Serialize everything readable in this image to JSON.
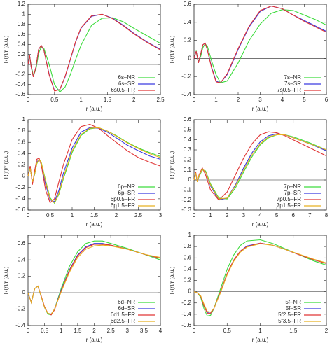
{
  "chart_data": [
    {
      "type": "line",
      "x_label": "r (a.u.)",
      "y_label": "R(r)/r (a.u.)",
      "legend": "lower right",
      "xlim": [
        0,
        2.5
      ],
      "xticks": [
        0,
        0.5,
        1,
        1.5,
        2,
        2.5
      ],
      "ylim": [
        -0.6,
        1.2
      ],
      "yticks": [
        -0.6,
        -0.4,
        -0.2,
        0,
        0.2,
        0.4,
        0.6,
        0.8,
        1,
        1.2
      ],
      "x": [
        0,
        0.03,
        0.06,
        0.1,
        0.15,
        0.2,
        0.25,
        0.3,
        0.4,
        0.5,
        0.6,
        0.7,
        0.8,
        0.9,
        1.0,
        1.2,
        1.4,
        1.6,
        1.8,
        2.0,
        2.25,
        2.5
      ],
      "series": [
        {
          "name": "6s–NR",
          "color": "#3ddc3d",
          "values": [
            0,
            0.17,
            -0.02,
            -0.22,
            -0.1,
            0.22,
            0.35,
            0.32,
            0.0,
            -0.4,
            -0.55,
            -0.45,
            -0.2,
            0.1,
            0.38,
            0.78,
            0.92,
            0.93,
            0.85,
            0.72,
            0.57,
            0.42
          ]
        },
        {
          "name": "6s–SR",
          "color": "#3a3ae0",
          "values": [
            0,
            0.18,
            -0.05,
            -0.25,
            -0.05,
            0.3,
            0.38,
            0.28,
            -0.2,
            -0.52,
            -0.5,
            -0.25,
            0.1,
            0.45,
            0.72,
            0.96,
            1.0,
            0.92,
            0.78,
            0.62,
            0.45,
            0.3
          ]
        },
        {
          "name": "6s0.5–FR",
          "color": "#e03434",
          "values": [
            0,
            0.18,
            -0.05,
            -0.25,
            -0.05,
            0.3,
            0.38,
            0.28,
            -0.21,
            -0.53,
            -0.5,
            -0.24,
            0.11,
            0.46,
            0.73,
            0.97,
            1.0,
            0.91,
            0.77,
            0.61,
            0.44,
            0.29
          ]
        }
      ]
    },
    {
      "type": "line",
      "x_label": "r (a.u.)",
      "y_label": "R(r)/r (a.u.)",
      "legend": "lower right",
      "xlim": [
        0,
        6
      ],
      "xticks": [
        0,
        1,
        2,
        3,
        4,
        5,
        6
      ],
      "ylim": [
        -0.4,
        0.6
      ],
      "yticks": [
        -0.4,
        -0.2,
        0,
        0.2,
        0.4,
        0.6
      ],
      "x": [
        0,
        0.1,
        0.2,
        0.3,
        0.4,
        0.5,
        0.6,
        0.8,
        1.0,
        1.2,
        1.5,
        2,
        2.5,
        3,
        3.5,
        4,
        4.5,
        5,
        5.5,
        6
      ],
      "series": [
        {
          "name": "7s–NR",
          "color": "#3ddc3d",
          "values": [
            0,
            0.08,
            -0.03,
            0.02,
            0.12,
            0.16,
            0.14,
            -0.03,
            -0.18,
            -0.27,
            -0.25,
            -0.05,
            0.2,
            0.38,
            0.5,
            0.54,
            0.53,
            0.48,
            0.43,
            0.37
          ]
        },
        {
          "name": "7s–SR",
          "color": "#3a3ae0",
          "values": [
            0,
            0.08,
            -0.05,
            0.05,
            0.15,
            0.17,
            0.1,
            -0.1,
            -0.25,
            -0.27,
            -0.18,
            0.1,
            0.35,
            0.52,
            0.58,
            0.55,
            0.48,
            0.42,
            0.36,
            0.3
          ]
        },
        {
          "name": "7s0.5–FR",
          "color": "#e03434",
          "values": [
            0,
            0.08,
            -0.05,
            0.05,
            0.15,
            0.17,
            0.1,
            -0.11,
            -0.26,
            -0.27,
            -0.17,
            0.11,
            0.36,
            0.53,
            0.58,
            0.55,
            0.48,
            0.41,
            0.35,
            0.29
          ]
        }
      ]
    },
    {
      "type": "line",
      "x_label": "r (a.u.)",
      "y_label": "R(r)/r (a.u.)",
      "legend": "lower right",
      "xlim": [
        0,
        3
      ],
      "xticks": [
        0,
        0.5,
        1,
        1.5,
        2,
        2.5,
        3
      ],
      "ylim": [
        -0.6,
        1
      ],
      "yticks": [
        -0.6,
        -0.4,
        -0.2,
        0,
        0.2,
        0.4,
        0.6,
        0.8,
        1
      ],
      "x": [
        0,
        0.05,
        0.1,
        0.15,
        0.2,
        0.25,
        0.3,
        0.4,
        0.5,
        0.6,
        0.7,
        0.8,
        1,
        1.2,
        1.4,
        1.6,
        1.8,
        2,
        2.25,
        2.5,
        2.75,
        3
      ],
      "series": [
        {
          "name": "6p–NR",
          "color": "#3ddc3d",
          "values": [
            0,
            0.14,
            -0.1,
            0.03,
            0.22,
            0.3,
            0.25,
            -0.08,
            -0.38,
            -0.48,
            -0.32,
            -0.05,
            0.42,
            0.72,
            0.84,
            0.86,
            0.8,
            0.72,
            0.6,
            0.5,
            0.42,
            0.35
          ]
        },
        {
          "name": "6p–SR",
          "color": "#3a3ae0",
          "values": [
            0,
            0.15,
            -0.12,
            0.05,
            0.25,
            0.3,
            0.22,
            -0.15,
            -0.42,
            -0.45,
            -0.25,
            0.05,
            0.5,
            0.78,
            0.86,
            0.85,
            0.78,
            0.68,
            0.55,
            0.45,
            0.36,
            0.3
          ]
        },
        {
          "name": "6p0.5–FR",
          "color": "#e03434",
          "values": [
            0,
            0.18,
            -0.15,
            0.1,
            0.3,
            0.32,
            0.2,
            -0.25,
            -0.47,
            -0.4,
            -0.1,
            0.2,
            0.65,
            0.88,
            0.92,
            0.85,
            0.72,
            0.6,
            0.45,
            0.33,
            0.25,
            0.18
          ]
        },
        {
          "name": "6p1.5–FR",
          "color": "#e8b020",
          "values": [
            0,
            0.14,
            -0.1,
            0.04,
            0.23,
            0.3,
            0.24,
            -0.1,
            -0.4,
            -0.47,
            -0.3,
            -0.02,
            0.45,
            0.74,
            0.85,
            0.86,
            0.8,
            0.71,
            0.59,
            0.49,
            0.4,
            0.33
          ]
        }
      ]
    },
    {
      "type": "line",
      "x_label": "r (a.u.)",
      "y_label": "R(r)/r (a.u.)",
      "legend": "lower right",
      "xlim": [
        0,
        8
      ],
      "xticks": [
        0,
        1,
        2,
        3,
        4,
        5,
        6,
        7,
        8
      ],
      "ylim": [
        -0.3,
        0.6
      ],
      "yticks": [
        -0.3,
        -0.2,
        -0.1,
        0,
        0.1,
        0.2,
        0.3,
        0.4,
        0.5,
        0.6
      ],
      "x": [
        0,
        0.1,
        0.2,
        0.3,
        0.5,
        0.7,
        1,
        1.5,
        2,
        2.5,
        3,
        3.5,
        4,
        4.5,
        5,
        5.5,
        6,
        7,
        8
      ],
      "series": [
        {
          "name": "7p–NR",
          "color": "#3ddc3d",
          "values": [
            0,
            0.07,
            -0.01,
            0.03,
            0.1,
            0.09,
            -0.04,
            -0.18,
            -0.19,
            -0.08,
            0.08,
            0.23,
            0.35,
            0.42,
            0.45,
            0.45,
            0.43,
            0.37,
            0.3
          ]
        },
        {
          "name": "7p–SR",
          "color": "#3a3ae0",
          "values": [
            0,
            0.07,
            -0.02,
            0.04,
            0.11,
            0.08,
            -0.06,
            -0.2,
            -0.18,
            -0.05,
            0.12,
            0.27,
            0.38,
            0.44,
            0.46,
            0.45,
            0.42,
            0.36,
            0.29
          ]
        },
        {
          "name": "7p0.5–FR",
          "color": "#e03434",
          "values": [
            0,
            0.08,
            -0.02,
            0.05,
            0.12,
            0.05,
            -0.1,
            -0.2,
            -0.12,
            0.05,
            0.22,
            0.36,
            0.45,
            0.48,
            0.47,
            0.44,
            0.4,
            0.32,
            0.24
          ]
        },
        {
          "name": "7p1.5–FR",
          "color": "#e8b020",
          "values": [
            0,
            0.07,
            -0.02,
            0.04,
            0.11,
            0.08,
            -0.05,
            -0.19,
            -0.18,
            -0.06,
            0.1,
            0.25,
            0.36,
            0.43,
            0.45,
            0.45,
            0.42,
            0.36,
            0.3
          ]
        }
      ]
    },
    {
      "type": "line",
      "x_label": "r (a.u.)",
      "y_label": "R(r)/r (a.u.)",
      "legend": "lower right",
      "xlim": [
        0,
        4
      ],
      "xticks": [
        0,
        0.5,
        1,
        1.5,
        2,
        2.5,
        3,
        3.5,
        4
      ],
      "ylim": [
        -0.4,
        0.7
      ],
      "yticks": [
        -0.4,
        -0.2,
        0,
        0.2,
        0.4,
        0.6
      ],
      "x": [
        0,
        0.1,
        0.2,
        0.3,
        0.4,
        0.5,
        0.6,
        0.7,
        0.8,
        1,
        1.25,
        1.5,
        1.75,
        2,
        2.25,
        2.5,
        3,
        3.5,
        4
      ],
      "series": [
        {
          "name": "6d–NR",
          "color": "#3ddc3d",
          "values": [
            0,
            -0.12,
            0.05,
            0.08,
            -0.05,
            -0.18,
            -0.26,
            -0.27,
            -0.2,
            0.05,
            0.32,
            0.5,
            0.6,
            0.63,
            0.63,
            0.6,
            0.54,
            0.47,
            0.4
          ]
        },
        {
          "name": "6d–SR",
          "color": "#3a3ae0",
          "values": [
            0,
            -0.12,
            0.05,
            0.08,
            -0.05,
            -0.18,
            -0.25,
            -0.26,
            -0.2,
            0.03,
            0.28,
            0.46,
            0.56,
            0.6,
            0.6,
            0.58,
            0.53,
            0.47,
            0.42
          ]
        },
        {
          "name": "6d1.5–FR",
          "color": "#e03434",
          "values": [
            0,
            -0.12,
            0.05,
            0.08,
            -0.04,
            -0.17,
            -0.25,
            -0.27,
            -0.21,
            0.02,
            0.27,
            0.45,
            0.55,
            0.59,
            0.59,
            0.58,
            0.53,
            0.47,
            0.42
          ]
        },
        {
          "name": "6d2.5–FR",
          "color": "#e8b020",
          "values": [
            0,
            -0.12,
            0.05,
            0.08,
            -0.05,
            -0.18,
            -0.25,
            -0.26,
            -0.2,
            0.01,
            0.25,
            0.43,
            0.53,
            0.57,
            0.58,
            0.57,
            0.53,
            0.47,
            0.43
          ]
        }
      ]
    },
    {
      "type": "line",
      "x_label": "r (a.u.)",
      "y_label": "R(r)/r (a.u.)",
      "legend": "lower right",
      "xlim": [
        0,
        2
      ],
      "xticks": [
        0,
        0.5,
        1,
        1.5,
        2
      ],
      "ylim": [
        -0.6,
        1
      ],
      "yticks": [
        -0.6,
        -0.4,
        -0.2,
        0,
        0.2,
        0.4,
        0.6,
        0.8,
        1
      ],
      "x": [
        0,
        0.05,
        0.1,
        0.15,
        0.2,
        0.25,
        0.3,
        0.4,
        0.5,
        0.6,
        0.7,
        0.8,
        1,
        1.2,
        1.4,
        1.6,
        1.8,
        2
      ],
      "series": [
        {
          "name": "5f–NR",
          "color": "#3ddc3d",
          "values": [
            0,
            -0.02,
            -0.1,
            -0.3,
            -0.43,
            -0.42,
            -0.3,
            0.05,
            0.4,
            0.65,
            0.82,
            0.9,
            0.92,
            0.85,
            0.75,
            0.65,
            0.55,
            0.47
          ]
        },
        {
          "name": "5f–SR",
          "color": "#3a3ae0",
          "values": [
            0,
            -0.02,
            -0.08,
            -0.25,
            -0.37,
            -0.38,
            -0.3,
            0.0,
            0.32,
            0.56,
            0.72,
            0.81,
            0.86,
            0.82,
            0.74,
            0.65,
            0.57,
            0.5
          ]
        },
        {
          "name": "5f2.5–FR",
          "color": "#e03434",
          "values": [
            0,
            -0.02,
            -0.08,
            -0.25,
            -0.38,
            -0.38,
            -0.3,
            0.0,
            0.32,
            0.56,
            0.72,
            0.8,
            0.86,
            0.82,
            0.74,
            0.65,
            0.57,
            0.5
          ]
        },
        {
          "name": "5f3.5–FR",
          "color": "#e8b020",
          "values": [
            0,
            -0.02,
            -0.07,
            -0.22,
            -0.35,
            -0.36,
            -0.3,
            -0.02,
            0.3,
            0.54,
            0.7,
            0.79,
            0.85,
            0.82,
            0.74,
            0.66,
            0.58,
            0.51
          ]
        }
      ]
    }
  ]
}
